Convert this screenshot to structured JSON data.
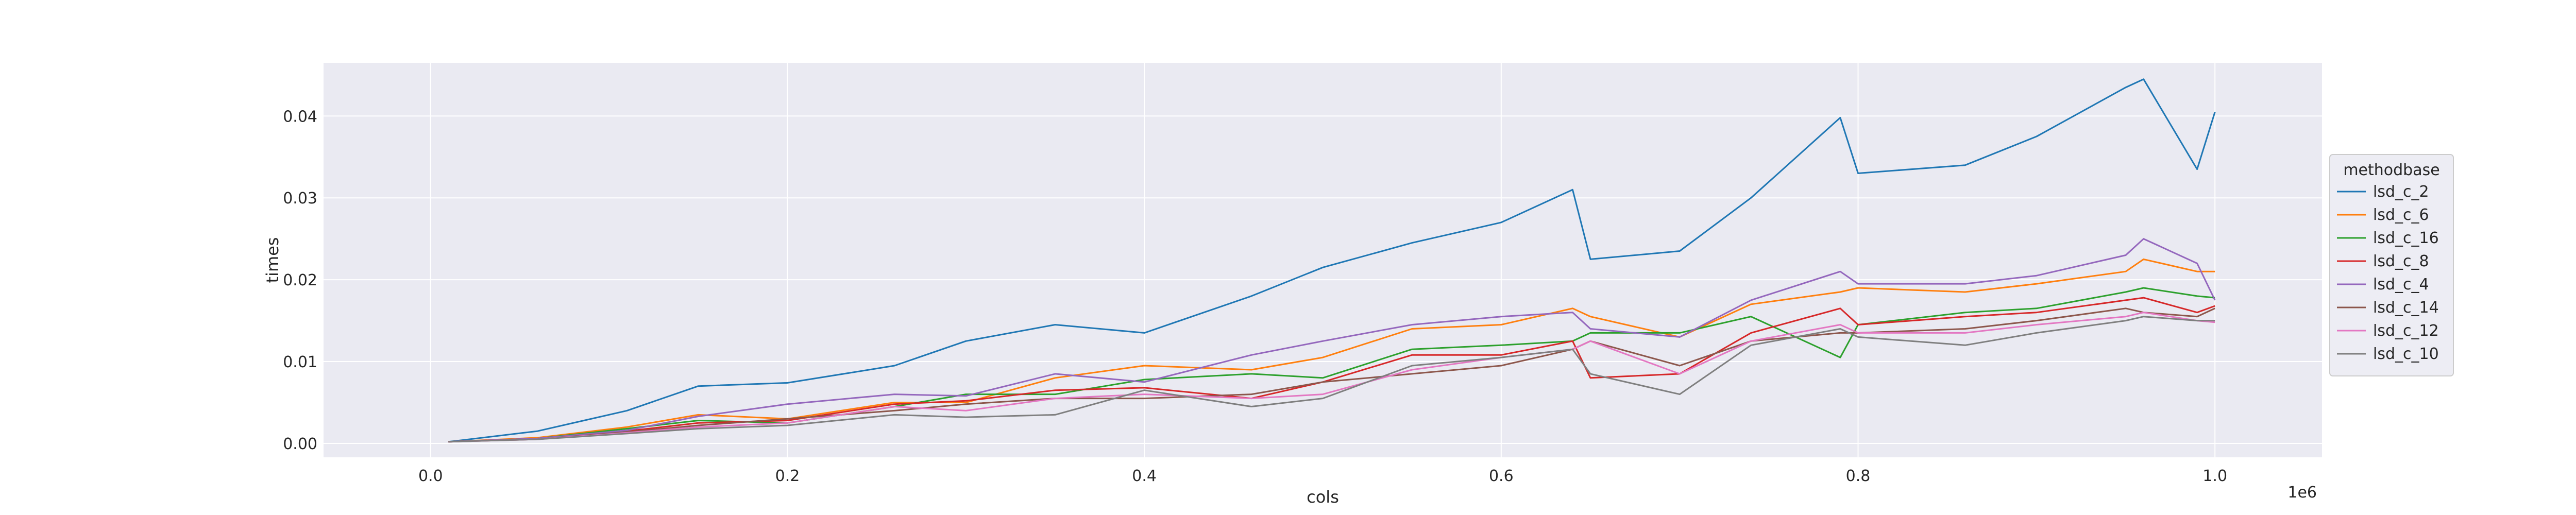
{
  "chart_data": {
    "type": "line",
    "title": "",
    "xlabel": "cols",
    "ylabel": "times",
    "x_offset_text": "1e6",
    "xlim": [
      -60000,
      1060000
    ],
    "ylim": [
      -0.0017,
      0.0465
    ],
    "xticks": [
      0,
      200000,
      400000,
      600000,
      800000,
      1000000
    ],
    "xtick_labels": [
      "0.0",
      "0.2",
      "0.4",
      "0.6",
      "0.8",
      "1.0"
    ],
    "yticks": [
      0,
      0.01,
      0.02,
      0.03,
      0.04
    ],
    "ytick_labels": [
      "0.00",
      "0.01",
      "0.02",
      "0.03",
      "0.04"
    ],
    "grid": true,
    "background": "#eaeaf2",
    "legend": {
      "title": "methodbase",
      "placement": "right"
    },
    "x": [
      10000,
      60000,
      110000,
      150000,
      200000,
      260000,
      300000,
      350000,
      400000,
      460000,
      500000,
      550000,
      600000,
      640000,
      650000,
      700000,
      740000,
      790000,
      800000,
      860000,
      900000,
      950000,
      960000,
      990000,
      1000000
    ],
    "series": [
      {
        "name": "lsd_c_2",
        "color": "#1f77b4",
        "values": [
          0.0002,
          0.0015,
          0.004,
          0.007,
          0.0074,
          0.0095,
          0.0125,
          0.0145,
          0.0135,
          0.018,
          0.0215,
          0.0245,
          0.027,
          0.031,
          0.0225,
          0.0235,
          0.03,
          0.0398,
          0.033,
          0.034,
          0.0375,
          0.0435,
          0.0445,
          0.0335,
          0.0405
        ]
      },
      {
        "name": "lsd_c_6",
        "color": "#ff7f0e",
        "values": [
          0.0002,
          0.0007,
          0.002,
          0.0035,
          0.003,
          0.005,
          0.005,
          0.008,
          0.0095,
          0.009,
          0.0105,
          0.014,
          0.0145,
          0.0165,
          0.0155,
          0.013,
          0.017,
          0.0185,
          0.019,
          0.0185,
          0.0195,
          0.021,
          0.0225,
          0.021,
          0.021
        ]
      },
      {
        "name": "lsd_c_16",
        "color": "#2ca02c",
        "values": [
          0.0002,
          0.0006,
          0.0018,
          0.0028,
          0.0025,
          0.0045,
          0.006,
          0.006,
          0.0078,
          0.0085,
          0.008,
          0.0115,
          0.012,
          0.0125,
          0.0135,
          0.0135,
          0.0155,
          0.0105,
          0.0145,
          0.016,
          0.0165,
          0.0185,
          0.019,
          0.018,
          0.0178
        ]
      },
      {
        "name": "lsd_c_8",
        "color": "#d62728",
        "values": [
          0.0002,
          0.0006,
          0.0015,
          0.0025,
          0.0028,
          0.0048,
          0.0052,
          0.0065,
          0.0068,
          0.0055,
          0.0075,
          0.0108,
          0.0108,
          0.0125,
          0.008,
          0.0085,
          0.0135,
          0.0165,
          0.0145,
          0.0155,
          0.016,
          0.0175,
          0.0178,
          0.016,
          0.0168
        ]
      },
      {
        "name": "lsd_c_4",
        "color": "#9467bd",
        "values": [
          0.0002,
          0.0006,
          0.0016,
          0.0033,
          0.0048,
          0.006,
          0.0058,
          0.0085,
          0.0075,
          0.0108,
          0.0125,
          0.0145,
          0.0155,
          0.016,
          0.014,
          0.013,
          0.0175,
          0.021,
          0.0195,
          0.0195,
          0.0205,
          0.023,
          0.025,
          0.022,
          0.0175
        ]
      },
      {
        "name": "lsd_c_14",
        "color": "#8c564b",
        "values": [
          0.0002,
          0.0005,
          0.0014,
          0.0022,
          0.003,
          0.004,
          0.0048,
          0.0055,
          0.0055,
          0.006,
          0.0075,
          0.0085,
          0.0095,
          0.0115,
          0.0125,
          0.0095,
          0.0125,
          0.0135,
          0.0135,
          0.014,
          0.015,
          0.0165,
          0.016,
          0.0155,
          0.0165
        ]
      },
      {
        "name": "lsd_c_12",
        "color": "#e377c2",
        "values": [
          0.0002,
          0.0005,
          0.0013,
          0.002,
          0.0025,
          0.0045,
          0.004,
          0.0055,
          0.006,
          0.0055,
          0.006,
          0.009,
          0.0105,
          0.0115,
          0.0125,
          0.0085,
          0.0125,
          0.0145,
          0.0135,
          0.0135,
          0.0145,
          0.0155,
          0.016,
          0.015,
          0.0148
        ]
      },
      {
        "name": "lsd_c_10",
        "color": "#7f7f7f",
        "values": [
          0.0002,
          0.0005,
          0.0012,
          0.0018,
          0.0022,
          0.0035,
          0.0032,
          0.0035,
          0.0065,
          0.0045,
          0.0055,
          0.0095,
          0.0105,
          0.0115,
          0.0085,
          0.006,
          0.012,
          0.014,
          0.013,
          0.012,
          0.0135,
          0.015,
          0.0155,
          0.015,
          0.015
        ]
      }
    ]
  }
}
